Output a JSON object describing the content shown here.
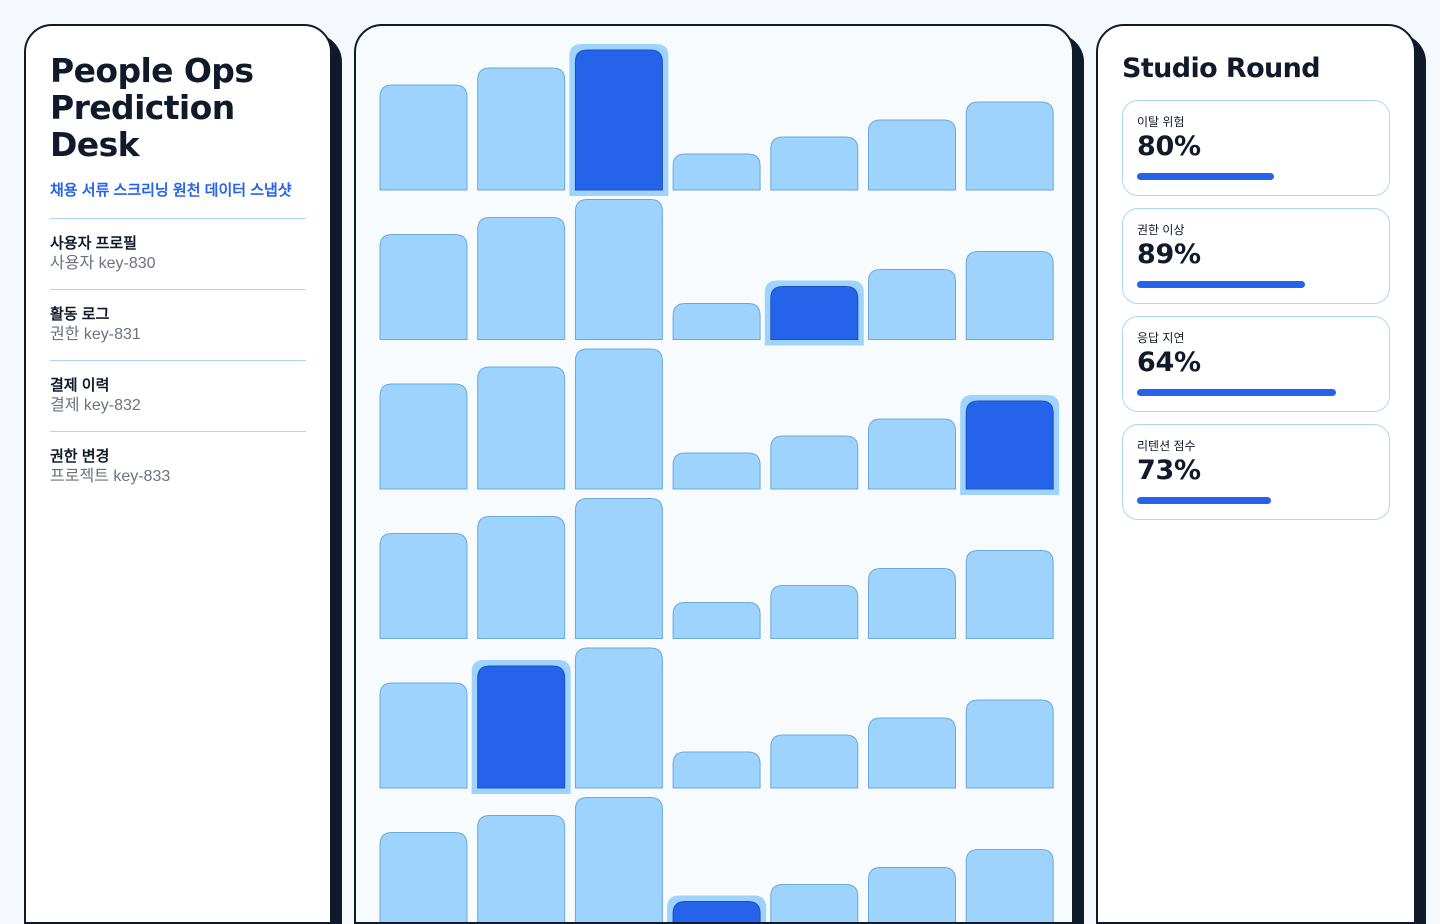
{
  "sidebar": {
    "title": "People Ops\nPrediction\nDesk",
    "subtitle": "채용 서류 스크리닝 원천 데이터 스냅샷",
    "items": [
      {
        "title": "사용자 프로필",
        "sub": "사용자 key-830"
      },
      {
        "title": "활동 로그",
        "sub": "권한 key-831"
      },
      {
        "title": "결제 이력",
        "sub": "결제 key-832"
      },
      {
        "title": "권한 변경",
        "sub": "프로젝트 key-833"
      }
    ]
  },
  "grid": {
    "column_levels": [
      0.75,
      0.87,
      1.0,
      0.26,
      0.38,
      0.5,
      0.63
    ],
    "selected_column_per_row": [
      2,
      4,
      6,
      null,
      1,
      3
    ],
    "colors": {
      "bar": "#9ed3fd",
      "bar_border": "#6aa9d8",
      "selected": "#2563eb",
      "selected_halo": "#9ed3fd"
    }
  },
  "stats": {
    "title": "Studio Round",
    "cards": [
      {
        "label": "이탈 위험",
        "value": "80%",
        "progress": 0.57
      },
      {
        "label": "권한 이상",
        "value": "89%",
        "progress": 0.7
      },
      {
        "label": "응답 지연",
        "value": "64%",
        "progress": 0.83
      },
      {
        "label": "리텐션 점수",
        "value": "73%",
        "progress": 0.56
      }
    ]
  }
}
